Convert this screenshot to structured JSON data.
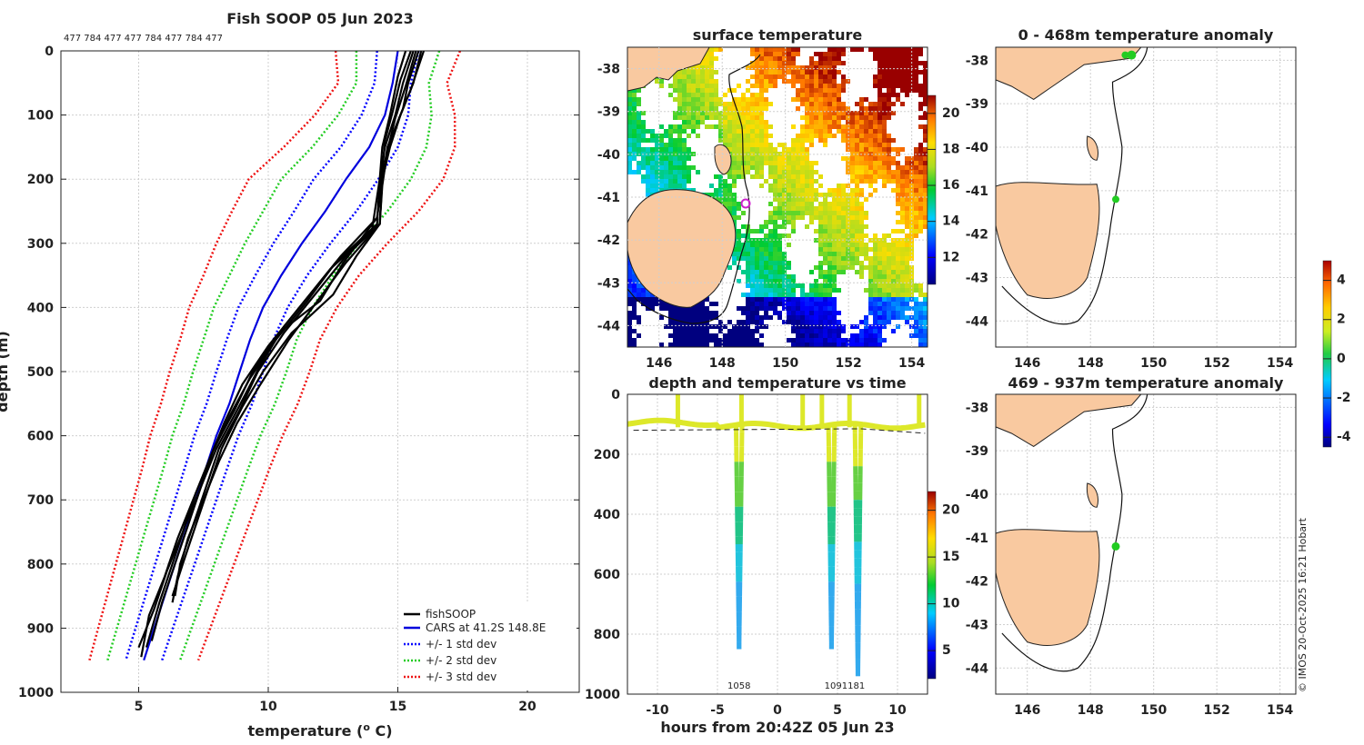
{
  "chart_data": [
    {
      "id": "profile",
      "type": "line",
      "title": "Fish SOOP 05 Jun 2023",
      "subtitle": "477 784 477 477 784 477 784 477",
      "xlabel_parts": [
        "temperature (",
        "o",
        " C)"
      ],
      "ylabel": "depth (m)",
      "xlim": [
        2,
        22
      ],
      "ylim": [
        0,
        1000
      ],
      "xticks": [
        5,
        10,
        15,
        20
      ],
      "yticks": [
        0,
        100,
        200,
        300,
        400,
        500,
        600,
        700,
        800,
        900,
        1000
      ],
      "legend": [
        "fishSOOP",
        "CARS at 41.2S 148.8E",
        "+/- 1 std dev",
        "+/- 2 std dev",
        "+/- 3 std dev"
      ],
      "colors": {
        "fishsoop": "#000000",
        "cars": "#0000dd",
        "std1": "#0000ff",
        "std2": "#22cc22",
        "std3": "#ee1111"
      },
      "cars_mean": {
        "depth": [
          0,
          50,
          100,
          150,
          200,
          250,
          300,
          350,
          400,
          450,
          500,
          550,
          600,
          650,
          700,
          750,
          800,
          850,
          900,
          950
        ],
        "temp": [
          15.0,
          14.8,
          14.5,
          13.9,
          13.0,
          12.2,
          11.3,
          10.5,
          9.8,
          9.3,
          8.9,
          8.5,
          8.0,
          7.6,
          7.2,
          6.8,
          6.4,
          6.0,
          5.6,
          5.2
        ]
      },
      "std_offsets": {
        "depth": [
          0,
          50,
          100,
          150,
          200,
          250,
          300,
          350,
          400,
          450,
          500,
          550,
          600,
          650,
          700,
          750,
          800,
          850,
          900,
          950
        ],
        "sd": [
          0.8,
          0.7,
          0.9,
          1.1,
          1.25,
          1.2,
          1.1,
          1.0,
          0.95,
          0.9,
          0.9,
          0.88,
          0.85,
          0.82,
          0.8,
          0.78,
          0.76,
          0.74,
          0.72,
          0.7
        ]
      },
      "fishsoop_profiles": [
        {
          "depth": [
            0,
            50,
            90,
            120,
            150,
            200,
            270,
            320,
            380,
            440,
            500,
            560,
            620,
            680,
            740,
            800,
            850
          ],
          "temp": [
            15.8,
            15.4,
            15.2,
            14.9,
            14.6,
            14.4,
            14.3,
            13.0,
            11.8,
            10.6,
            9.6,
            8.9,
            8.1,
            7.6,
            7.1,
            6.6,
            6.4
          ]
        },
        {
          "depth": [
            0,
            50,
            100,
            150,
            200,
            270,
            330,
            390,
            450,
            510,
            570,
            630,
            690,
            750,
            810,
            870,
            930
          ],
          "temp": [
            15.6,
            15.2,
            14.9,
            14.5,
            14.3,
            14.2,
            12.6,
            11.5,
            10.3,
            9.3,
            8.5,
            7.8,
            7.2,
            6.7,
            6.1,
            5.6,
            5.0
          ]
        },
        {
          "depth": [
            0,
            60,
            110,
            160,
            200,
            260,
            330,
            390,
            440,
            500,
            560,
            620,
            680,
            740,
            800,
            860,
            930
          ],
          "temp": [
            16.0,
            15.5,
            15.0,
            14.6,
            14.4,
            14.2,
            12.9,
            12.0,
            10.4,
            9.4,
            8.7,
            7.9,
            7.4,
            6.8,
            6.3,
            5.8,
            5.3
          ]
        },
        {
          "depth": [
            0,
            40,
            100,
            150,
            200,
            280,
            340,
            400,
            460,
            520,
            580,
            640,
            700,
            760,
            820,
            880,
            945
          ],
          "temp": [
            15.3,
            15.0,
            14.7,
            14.4,
            14.3,
            14.0,
            12.4,
            11.2,
            10.0,
            9.0,
            8.3,
            7.7,
            7.1,
            6.5,
            6.0,
            5.4,
            5.1
          ]
        },
        {
          "depth": [
            0,
            55,
            105,
            155,
            210,
            270,
            320,
            380,
            440,
            500,
            555,
            620,
            680,
            740,
            800,
            850
          ],
          "temp": [
            15.7,
            15.3,
            14.9,
            14.6,
            14.4,
            14.3,
            13.4,
            12.5,
            10.9,
            9.8,
            9.0,
            8.2,
            7.7,
            7.2,
            6.7,
            6.3
          ]
        },
        {
          "depth": [
            0,
            45,
            95,
            140,
            190,
            260,
            320,
            380,
            430,
            490,
            560,
            620,
            680,
            740,
            800,
            860,
            920
          ],
          "temp": [
            15.5,
            15.1,
            14.8,
            14.5,
            14.4,
            14.2,
            12.8,
            11.6,
            10.6,
            9.7,
            8.8,
            8.0,
            7.4,
            6.9,
            6.4,
            5.9,
            5.5
          ]
        },
        {
          "depth": [
            0,
            50,
            100,
            150,
            200,
            270,
            330,
            390,
            450,
            520,
            580,
            640,
            700,
            760,
            820,
            860
          ],
          "temp": [
            15.9,
            15.6,
            15.1,
            14.7,
            14.4,
            14.3,
            13.0,
            11.9,
            10.8,
            9.7,
            8.8,
            8.1,
            7.5,
            6.9,
            6.5,
            6.3
          ]
        }
      ]
    },
    {
      "id": "sst_map",
      "type": "heatmap",
      "title": "surface temperature",
      "xlim": [
        145,
        154.5
      ],
      "ylim": [
        -44.5,
        -37.5
      ],
      "xticks": [
        146,
        148,
        150,
        152,
        154
      ],
      "yticks": [
        -38,
        -39,
        -40,
        -41,
        -42,
        -43,
        -44
      ],
      "colorbar_ticks": [
        12,
        14,
        16,
        18,
        20
      ],
      "colorbar_range": [
        10.5,
        21
      ]
    },
    {
      "id": "time_depth",
      "type": "scatter",
      "title": "depth and temperature vs time",
      "xlabel": "hours from 20:42Z 05 Jun 23",
      "xlim": [
        -12.5,
        12.5
      ],
      "ylim": [
        0,
        1000
      ],
      "xticks": [
        -10,
        -5,
        0,
        5,
        10
      ],
      "yticks": [
        0,
        200,
        400,
        600,
        800,
        1000
      ],
      "colorbar_ticks": [
        5,
        10,
        15,
        20
      ],
      "colorbar_range": [
        2,
        22
      ],
      "dives": [
        {
          "t": -3.2,
          "maxdepth": 850,
          "label": "1058"
        },
        {
          "t": 4.5,
          "maxdepth": 850,
          "label": "1091"
        },
        {
          "t": 6.7,
          "maxdepth": 940,
          "label": "1181"
        }
      ],
      "dive_labels": [
        "1058",
        "1091181"
      ]
    },
    {
      "id": "anom_shallow",
      "type": "scatter",
      "title": "0 - 468m temperature anomaly",
      "xlim": [
        145,
        154.5
      ],
      "ylim": [
        -44.6,
        -37.7
      ],
      "xticks": [
        146,
        148,
        150,
        152,
        154
      ],
      "yticks": [
        -38,
        -39,
        -40,
        -41,
        -42,
        -43,
        -44
      ]
    },
    {
      "id": "anom_deep",
      "type": "scatter",
      "title": "469 - 937m temperature anomaly",
      "xlim": [
        145,
        154.5
      ],
      "ylim": [
        -44.6,
        -37.7
      ],
      "xticks": [
        146,
        148,
        150,
        152,
        154
      ],
      "yticks": [
        -38,
        -39,
        -40,
        -41,
        -42,
        -43,
        -44
      ]
    },
    {
      "id": "anom_colorbar",
      "type": "colorbar",
      "ticks": [
        4,
        2,
        0,
        -2,
        -4
      ],
      "range": [
        -4.5,
        5
      ]
    }
  ],
  "copyright": "© IMOS 20-Oct-2025 16:21 Hobart"
}
